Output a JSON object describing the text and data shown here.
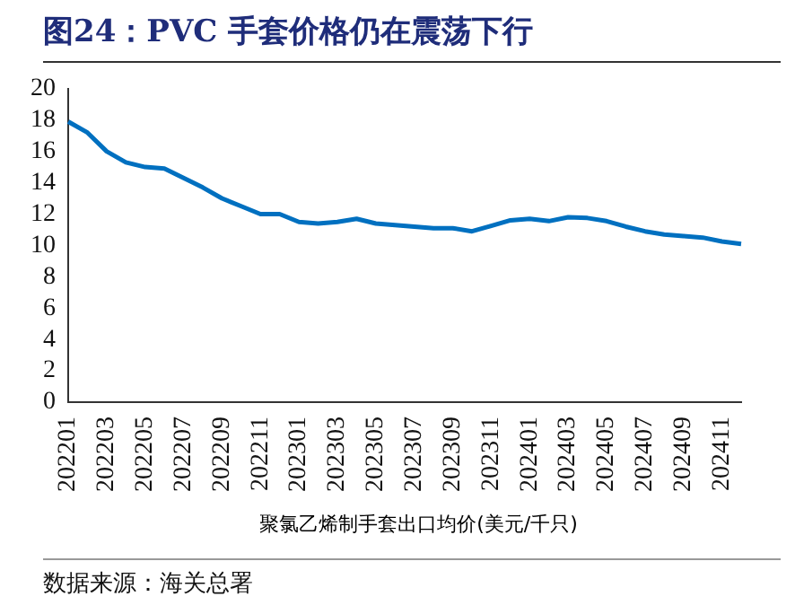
{
  "chart_data": {
    "type": "line",
    "title": "图24：PVC 手套价格仍在震荡下行",
    "categories": [
      "202201",
      null,
      "202203",
      null,
      "202205",
      null,
      "202207",
      null,
      "202209",
      null,
      "202211",
      null,
      "202301",
      null,
      "202303",
      null,
      "202305",
      null,
      "202307",
      null,
      "202309",
      null,
      "202311",
      null,
      "202401",
      null,
      "202403",
      null,
      "202405",
      null,
      "202407",
      null,
      "202409",
      null,
      "202411",
      null
    ],
    "series": [
      {
        "name": "聚氯乙烯制手套出口均价(美元/千只)",
        "color": "#0070c0",
        "values": [
          17.9,
          17.2,
          16.0,
          15.3,
          15.0,
          14.9,
          14.3,
          13.7,
          13.0,
          12.5,
          12.0,
          12.0,
          11.5,
          11.4,
          11.5,
          11.7,
          11.4,
          11.3,
          11.2,
          11.1,
          11.1,
          10.9,
          11.25,
          11.6,
          11.7,
          11.55,
          11.8,
          11.75,
          11.55,
          11.2,
          10.9,
          10.7,
          10.6,
          10.5,
          10.25,
          10.1
        ]
      }
    ],
    "ylim": [
      0,
      20
    ],
    "yticks": [
      0,
      2,
      4,
      6,
      8,
      10,
      12,
      14,
      16,
      18,
      20
    ],
    "grid": false,
    "legend": "bottom",
    "marker": "none",
    "line_style": "solid",
    "annotations": [
      "数据来源：海关总署"
    ]
  }
}
